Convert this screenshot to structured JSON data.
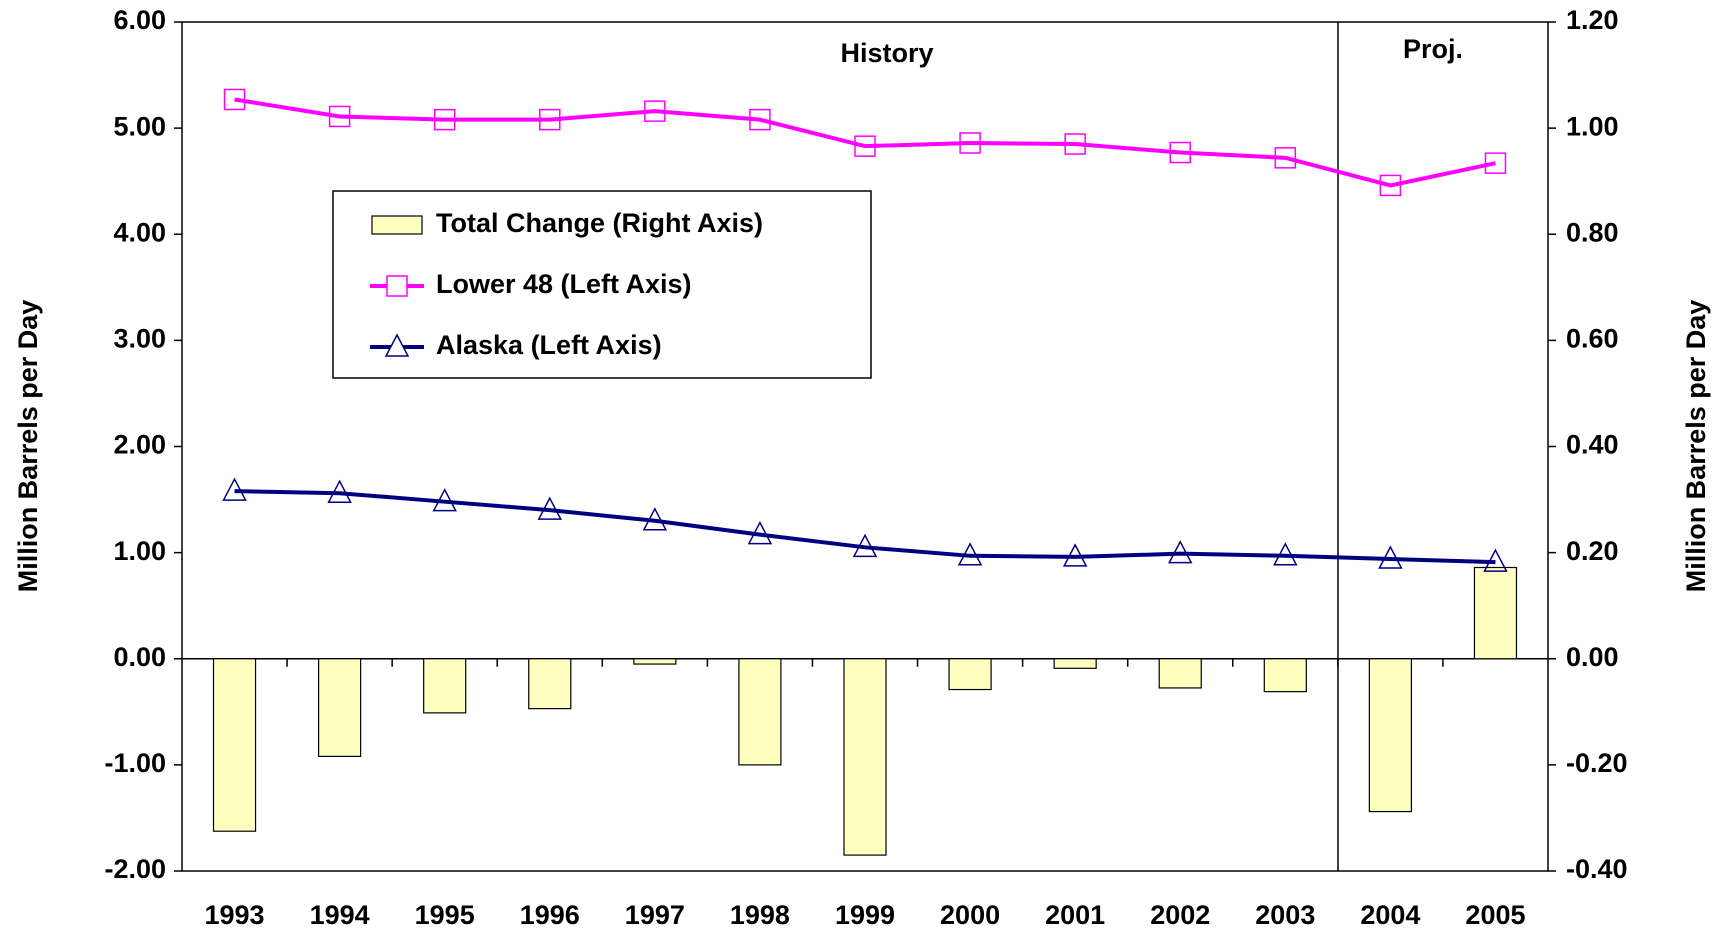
{
  "chart_data": {
    "type": "combo",
    "categories": [
      "1993",
      "1994",
      "1995",
      "1996",
      "1997",
      "1998",
      "1999",
      "2000",
      "2001",
      "2002",
      "2003",
      "2004",
      "2005"
    ],
    "series": [
      {
        "name": "Total Change (Right Axis)",
        "type": "bar",
        "axis": "y2",
        "color": "#ffffc0",
        "values": [
          -0.325,
          -0.184,
          -0.102,
          -0.094,
          -0.01,
          -0.2,
          -0.37,
          -0.058,
          -0.018,
          -0.055,
          -0.062,
          -0.288,
          0.172
        ]
      },
      {
        "name": "Lower 48 (Left Axis)",
        "type": "line",
        "marker": "square",
        "color": "#ff00ff",
        "values": [
          5.27,
          5.11,
          5.08,
          5.08,
          5.16,
          5.08,
          4.83,
          4.86,
          4.85,
          4.77,
          4.72,
          4.46,
          4.67
        ]
      },
      {
        "name": "Alaska (Left Axis)",
        "type": "line",
        "marker": "triangle",
        "color": "#000080",
        "values": [
          1.58,
          1.56,
          1.48,
          1.4,
          1.3,
          1.17,
          1.05,
          0.97,
          0.96,
          0.99,
          0.97,
          0.94,
          0.91
        ]
      }
    ],
    "ylabel": "Million Barrels per Day",
    "y2label": "Million Barrels per Day",
    "ylim": [
      -2,
      6
    ],
    "yticks": [
      {
        "value": -2,
        "label": "-2.00"
      },
      {
        "value": -1,
        "label": "-1.00"
      },
      {
        "value": 0,
        "label": "0.00"
      },
      {
        "value": 1,
        "label": "1.00"
      },
      {
        "value": 2,
        "label": "2.00"
      },
      {
        "value": 3,
        "label": "3.00"
      },
      {
        "value": 4,
        "label": "4.00"
      },
      {
        "value": 5,
        "label": "5.00"
      },
      {
        "value": 6,
        "label": "6.00"
      }
    ],
    "y2lim": [
      -0.4,
      1.2
    ],
    "y2ticks": [
      {
        "value": -0.4,
        "label": "-0.40"
      },
      {
        "value": -0.2,
        "label": "-0.20"
      },
      {
        "value": 0,
        "label": "0.00"
      },
      {
        "value": 0.2,
        "label": "0.20"
      },
      {
        "value": 0.4,
        "label": "0.40"
      },
      {
        "value": 0.6,
        "label": "0.60"
      },
      {
        "value": 0.8,
        "label": "0.80"
      },
      {
        "value": 1.0,
        "label": "1.00"
      },
      {
        "value": 1.2,
        "label": "1.20"
      }
    ],
    "annotations": [
      "History",
      "Proj."
    ],
    "grid": false
  }
}
